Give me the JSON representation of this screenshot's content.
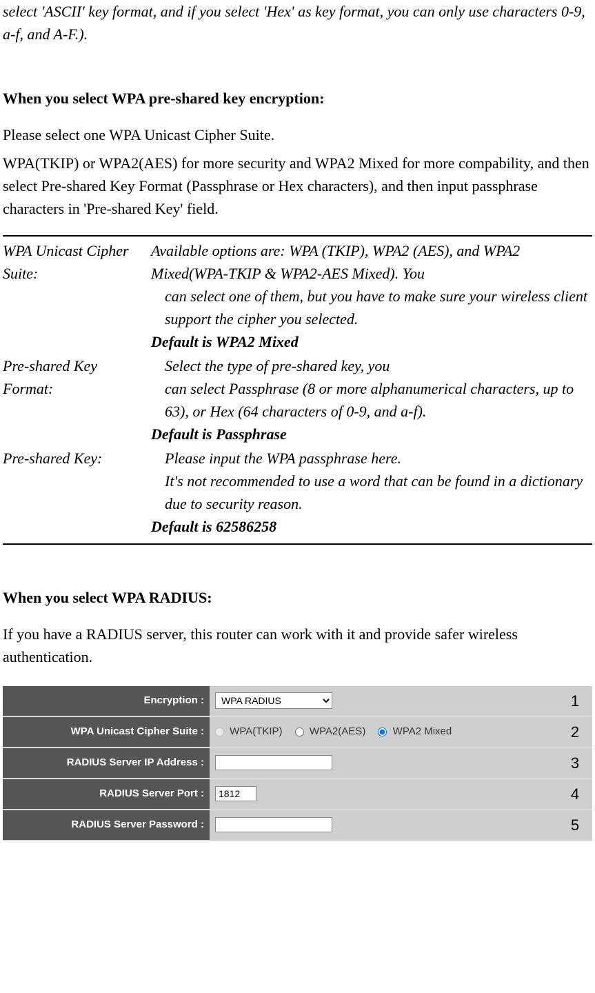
{
  "intro_tail": "select 'ASCII' key format, and if you select 'Hex' as key format, you can only use characters 0-9, a-f, and A-F.).",
  "psk": {
    "heading": "When you select WPA pre-shared key encryption:",
    "line1": "Please select one WPA Unicast Cipher Suite.",
    "line2": "WPA(TKIP) or WPA2(AES) for more security and WPA2 Mixed for more compability, and then select Pre-shared Key Format (Passphrase or Hex characters), and then input passphrase characters in 'Pre-shared Key' field.",
    "defs": {
      "cipher": {
        "term": "WPA Unicast Cipher Suite:",
        "desc_l1": "Available options are: WPA (TKIP), WPA2 (AES), and",
        "desc_l2": "WPA2 Mixed(WPA-TKIP & WPA2-AES Mixed). You",
        "desc_l3": "can select one of them, but you have to make sure your wireless client support the cipher you selected.",
        "default": "Default is WPA2 Mixed"
      },
      "keyfmt": {
        "term": "Pre-shared Key Format:",
        "desc_l1": "Select the type of pre-shared key, you",
        "desc_l2": "can select Passphrase (8 or more alphanumerical characters, up to 63), or Hex (64 characters of 0-9, and a-f).",
        "default": "Default is Passphrase"
      },
      "key": {
        "term": "Pre-shared Key:",
        "desc_l1": "Please input the WPA passphrase here.",
        "desc_l2": "It's not recommended to use a word that can be found in a dictionary due to security reason.",
        "default": "Default is 62586258"
      }
    }
  },
  "radius": {
    "heading": "When you select WPA RADIUS:",
    "para": "If you have a RADIUS server, this router can work with it and provide safer wireless authentication.",
    "ui": {
      "rows": {
        "encryption": {
          "label": "Encryption :",
          "value": "WPA RADIUS",
          "num": "1"
        },
        "cipher": {
          "label": "WPA Unicast Cipher Suite :",
          "opt1": "WPA(TKIP)",
          "opt2": "WPA2(AES)",
          "opt3": "WPA2 Mixed",
          "selected": "opt3",
          "num": "2"
        },
        "ip": {
          "label": "RADIUS Server IP Address :",
          "value": "",
          "num": "3"
        },
        "port": {
          "label": "RADIUS Server Port :",
          "value": "1812",
          "num": "4"
        },
        "pwd": {
          "label": "RADIUS Server Password :",
          "value": "",
          "num": "5"
        }
      }
    }
  }
}
